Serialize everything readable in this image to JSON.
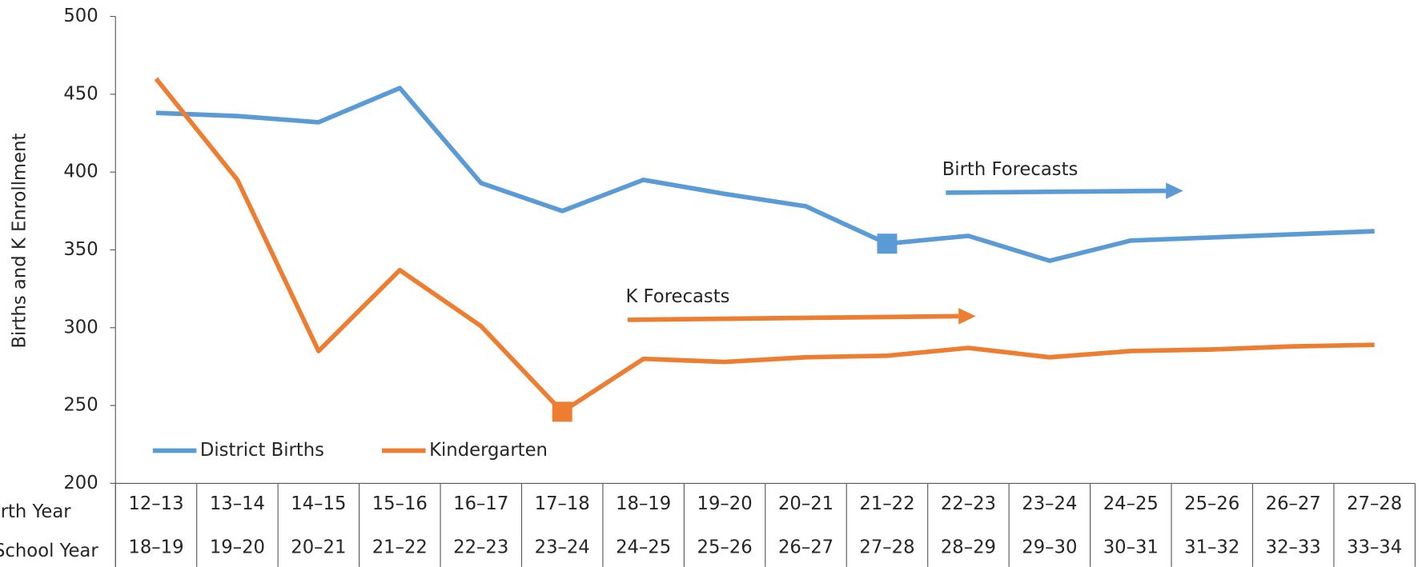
{
  "chart_data": {
    "type": "line",
    "y_label": "Births and K Enrollment",
    "row_labels": [
      "Birth Year",
      "School Year"
    ],
    "categories": [
      "12–13",
      "13–14",
      "14–15",
      "15–16",
      "16–17",
      "17–18",
      "18–19",
      "19–20",
      "20–21",
      "21–22",
      "22–23",
      "23–24",
      "24–25",
      "25–26",
      "26–27",
      "27–28"
    ],
    "school_years": [
      "18–19",
      "19–20",
      "20–21",
      "21–22",
      "22–23",
      "23–24",
      "24–25",
      "25–26",
      "26–27",
      "27–28",
      "28–29",
      "29–30",
      "30–31",
      "31–32",
      "32–33",
      "33–34"
    ],
    "series": [
      {
        "name": "District Births",
        "color": "#5b9bd5",
        "marker_index": 9,
        "values": [
          438,
          436,
          432,
          454,
          393,
          375,
          395,
          386,
          378,
          354,
          359,
          343,
          356,
          358,
          360,
          362
        ]
      },
      {
        "name": "Kindergarten",
        "color": "#ed7d31",
        "marker_index": 5,
        "values": [
          460,
          395,
          285,
          337,
          301,
          246,
          280,
          278,
          281,
          282,
          287,
          281,
          285,
          286,
          288,
          289
        ]
      }
    ],
    "annotations": [
      "Birth Forecasts",
      "K Forecasts"
    ],
    "ylim": [
      200,
      500
    ],
    "yticks": [
      200,
      250,
      300,
      350,
      400,
      450,
      500
    ],
    "legend": "bottom-left"
  }
}
